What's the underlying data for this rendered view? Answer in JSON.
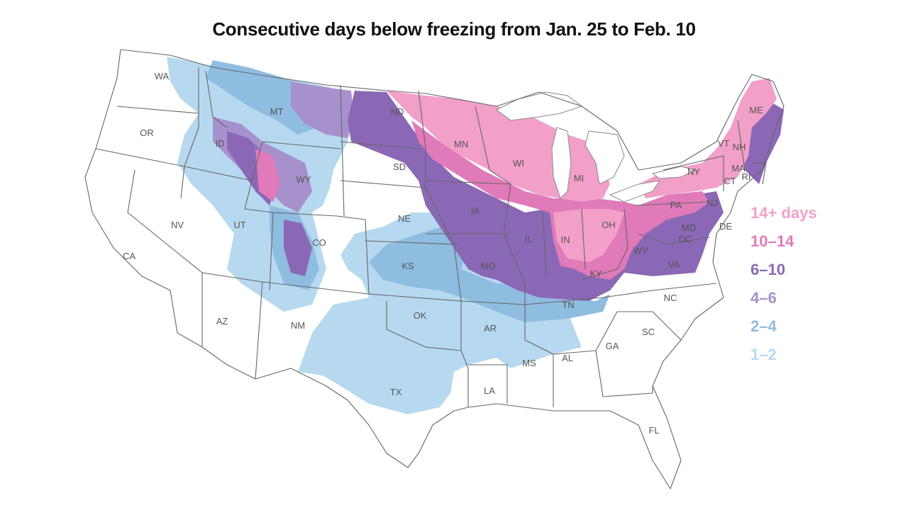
{
  "title": "Consecutive days below freezing from Jan. 25 to Feb. 10",
  "legend": [
    {
      "label": "14+ days",
      "color": "#f2a0c8"
    },
    {
      "label": "10–14",
      "color": "#e07ab8"
    },
    {
      "label": "6–10",
      "color": "#8a68b6"
    },
    {
      "label": "4–6",
      "color": "#a691cc"
    },
    {
      "label": "2–4",
      "color": "#8fbde0"
    },
    {
      "label": "1–2",
      "color": "#b6d9f0"
    }
  ],
  "state_labels": [
    "WA",
    "OR",
    "CA",
    "NV",
    "ID",
    "MT",
    "WY",
    "UT",
    "CO",
    "AZ",
    "NM",
    "ND",
    "SD",
    "NE",
    "KS",
    "OK",
    "TX",
    "MN",
    "IA",
    "MO",
    "AR",
    "LA",
    "WI",
    "IL",
    "MS",
    "MI",
    "IN",
    "KY",
    "TN",
    "AL",
    "OH",
    "WV",
    "GA",
    "SC",
    "NC",
    "VA",
    "FL",
    "PA",
    "NY",
    "NJ",
    "MD",
    "DC",
    "DE",
    "VT",
    "NH",
    "ME",
    "MA",
    "CT",
    "RI"
  ],
  "colors": {
    "state_border": "#666666",
    "land": "#ffffff"
  }
}
